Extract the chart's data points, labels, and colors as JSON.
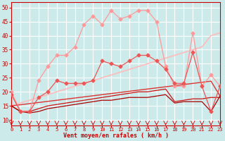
{
  "xlabel": "Vent moyen/en rafales ( km/h )",
  "xlim": [
    0,
    23
  ],
  "ylim": [
    8,
    52
  ],
  "yticks": [
    10,
    15,
    20,
    25,
    30,
    35,
    40,
    45,
    50
  ],
  "xticks": [
    0,
    1,
    2,
    3,
    4,
    5,
    6,
    7,
    8,
    9,
    10,
    11,
    12,
    13,
    14,
    15,
    16,
    17,
    18,
    19,
    20,
    21,
    22,
    23
  ],
  "bg_color": "#cdeaea",
  "grid_color": "#b0d8d8",
  "series": [
    {
      "name": "light_pink_upper_markers",
      "color": "#ff9999",
      "linewidth": 0.9,
      "marker": "D",
      "markersize": 2.5,
      "y": [
        20,
        13,
        13,
        24,
        29,
        33,
        33,
        36,
        44,
        47,
        44,
        49,
        46,
        47,
        49,
        49,
        45,
        29,
        22,
        22,
        41,
        22,
        26,
        22
      ]
    },
    {
      "name": "medium_pink_markers",
      "color": "#ee5555",
      "linewidth": 0.9,
      "marker": "D",
      "markersize": 2.5,
      "y": [
        19,
        13,
        13,
        18,
        20,
        24,
        23,
        23,
        23,
        24,
        31,
        30,
        29,
        31,
        33,
        33,
        31,
        28,
        23,
        23,
        34,
        22,
        13,
        22
      ]
    },
    {
      "name": "diagonal_upper_no_marker",
      "color": "#ffbbbb",
      "linewidth": 1.2,
      "marker": null,
      "y": [
        15,
        16,
        17,
        18,
        19,
        20,
        21,
        22,
        23,
        24,
        25,
        26,
        27,
        28,
        29,
        30,
        31,
        32,
        33,
        34,
        35,
        36,
        40,
        41
      ]
    },
    {
      "name": "diagonal_lower_no_marker",
      "color": "#dd3333",
      "linewidth": 1.0,
      "marker": null,
      "y": [
        15,
        15.4,
        15.8,
        16.2,
        16.6,
        17.0,
        17.4,
        17.8,
        18.2,
        18.6,
        19.0,
        19.4,
        19.8,
        20.2,
        20.6,
        21.0,
        21.4,
        21.8,
        22.2,
        22.6,
        23.0,
        23.4,
        23.8,
        18.5
      ]
    },
    {
      "name": "lower_red_line1",
      "color": "#cc1111",
      "linewidth": 0.9,
      "marker": null,
      "y": [
        15,
        13,
        13,
        14,
        15,
        15.5,
        16,
        16.5,
        17,
        17.5,
        18,
        18.5,
        19,
        19.5,
        20,
        20,
        20.5,
        21,
        16.5,
        17,
        17.5,
        17.5,
        18,
        18
      ]
    },
    {
      "name": "lower_dark_red_line2",
      "color": "#aa0000",
      "linewidth": 0.9,
      "marker": null,
      "y": [
        15,
        13,
        12.5,
        13,
        14,
        14.5,
        15,
        15.5,
        16,
        16.5,
        17,
        17,
        17.5,
        18,
        18,
        18,
        18.5,
        19,
        16,
        16.5,
        16.5,
        16.5,
        13,
        18.5
      ]
    }
  ]
}
